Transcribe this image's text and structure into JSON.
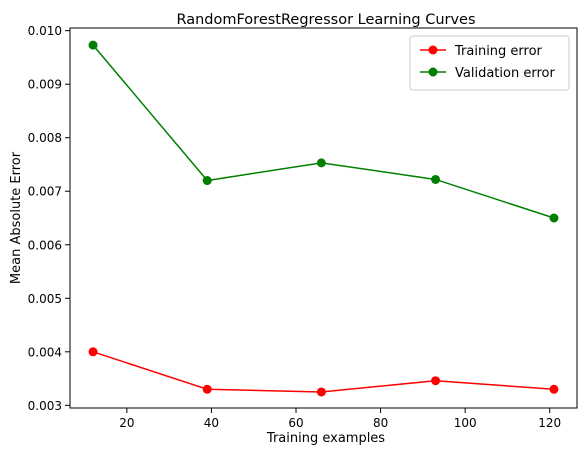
{
  "chart_data": {
    "type": "line",
    "title": "RandomForestRegressor Learning Curves",
    "xlabel": "Training examples",
    "ylabel": "Mean Absolute Error",
    "x": [
      12,
      39,
      66,
      93,
      121
    ],
    "xlim": [
      6.55,
      126.45
    ],
    "ylim": [
      0.00295,
      0.01005
    ],
    "xticks": [
      20,
      40,
      60,
      80,
      100,
      120
    ],
    "xtick_labels": [
      "20",
      "40",
      "60",
      "80",
      "100",
      "120"
    ],
    "yticks": [
      0.003,
      0.004,
      0.005,
      0.006,
      0.007,
      0.008,
      0.009,
      0.01
    ],
    "ytick_labels": [
      "0.003",
      "0.004",
      "0.005",
      "0.006",
      "0.007",
      "0.008",
      "0.009",
      "0.010"
    ],
    "grid": false,
    "legend_position": "top-right",
    "series": [
      {
        "name": "Training error",
        "color": "#ff0000",
        "marker": "circle",
        "values": [
          0.004,
          0.0033,
          0.00325,
          0.00346,
          0.0033
        ]
      },
      {
        "name": "Validation error",
        "color": "#008000",
        "marker": "circle",
        "values": [
          0.00973,
          0.0072,
          0.00753,
          0.00722,
          0.0065
        ]
      }
    ]
  }
}
